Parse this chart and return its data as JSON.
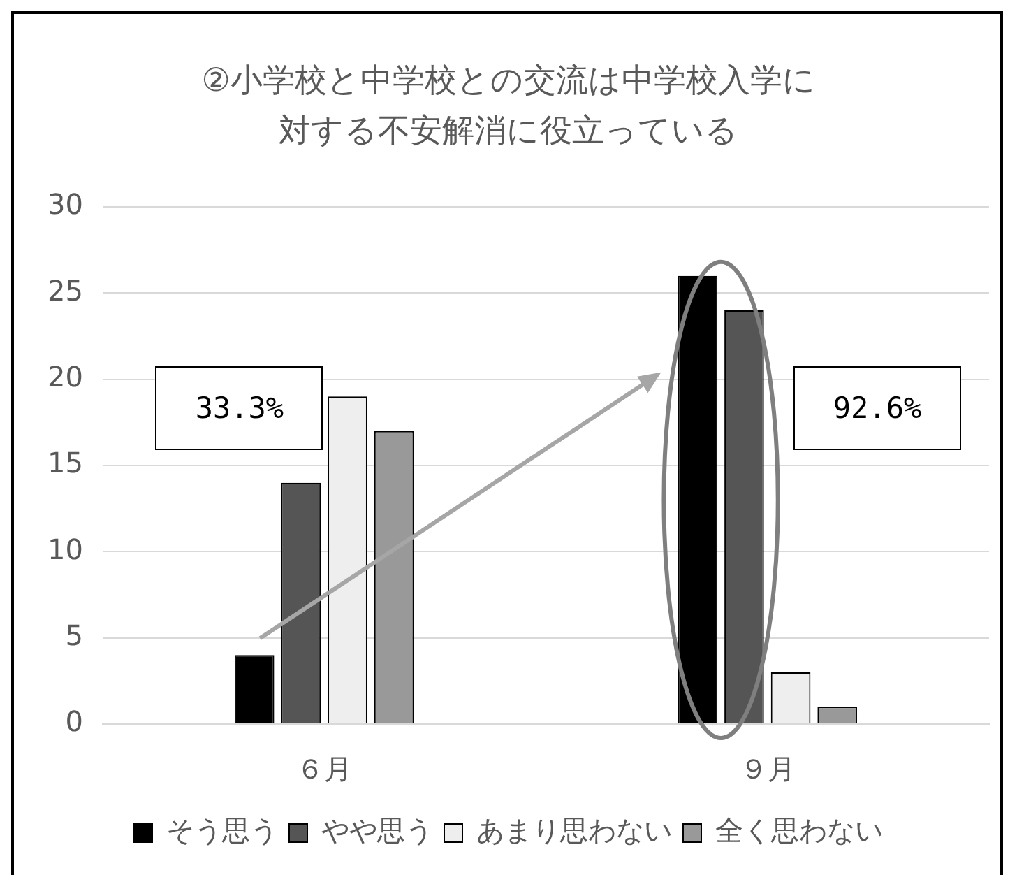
{
  "chart_data": {
    "type": "bar",
    "title": "②小学校と中学校との交流は中学校入学に対する不安解消に役立っている",
    "categories": [
      "６月",
      "９月"
    ],
    "series": [
      {
        "name": "そう思う",
        "color": "#000000",
        "values": [
          4,
          26
        ]
      },
      {
        "name": "やや思う",
        "color": "#555555",
        "values": [
          14,
          24
        ]
      },
      {
        "name": "あまり思わない",
        "color": "#eeeeee",
        "values": [
          19,
          3
        ]
      },
      {
        "name": "全く思わない",
        "color": "#999999",
        "values": [
          17,
          1
        ]
      }
    ],
    "annotations": [
      "33.3%",
      "92.6%"
    ],
    "ylim": [
      0,
      30
    ],
    "yticks": [
      0,
      5,
      10,
      15,
      20,
      25,
      30
    ],
    "grid": "y",
    "legend": "bottom"
  }
}
